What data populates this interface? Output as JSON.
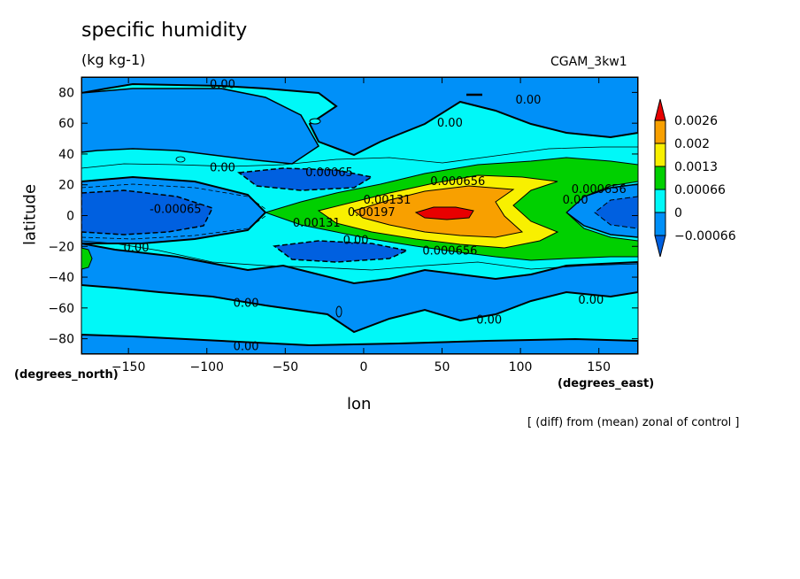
{
  "chart_data": {
    "type": "heatmap",
    "title": "specific humidity",
    "units": "(kg kg-1)",
    "run_label": "CGAM_3kw1",
    "xlabel": "lon",
    "ylabel": "latitude",
    "x_units_label": "(degrees_east)",
    "y_units_label": "(degrees_north)",
    "footnote": "[ (diff) from (mean) zonal of control ]",
    "xlim": [
      -180,
      175
    ],
    "ylim": [
      -90,
      90
    ],
    "x_ticks": [
      -150,
      -100,
      -50,
      0,
      50,
      100,
      150
    ],
    "y_ticks": [
      -80,
      -60,
      -40,
      -20,
      0,
      20,
      40,
      60,
      80
    ],
    "legend": {
      "levels": [
        "0.0026",
        "0.002",
        "0.0013",
        "0.00066",
        "0",
        "-0.00066"
      ],
      "colors": [
        "#e80000",
        "#f8a000",
        "#f8f000",
        "#00d000",
        "#00f8f8",
        "#0090f8",
        "#0060e0"
      ]
    },
    "contour_labels": [
      {
        "text": "0.00",
        "lon": -90,
        "lat": 85
      },
      {
        "text": "0.00",
        "lon": 105,
        "lat": 75
      },
      {
        "text": "0.00",
        "lon": 55,
        "lat": 60
      },
      {
        "text": "0.00",
        "lon": -90,
        "lat": 31
      },
      {
        "text": "0.00065",
        "lon": -22,
        "lat": 28
      },
      {
        "text": "0.000656",
        "lon": 60,
        "lat": 22
      },
      {
        "text": "0.000656",
        "lon": 150,
        "lat": 17
      },
      {
        "text": "0.00",
        "lon": 135,
        "lat": 10
      },
      {
        "text": "0.00131",
        "lon": 15,
        "lat": 10
      },
      {
        "text": "0.00197",
        "lon": 5,
        "lat": 2
      },
      {
        "text": "-0.00065",
        "lon": -120,
        "lat": 4
      },
      {
        "text": "0.00131",
        "lon": -30,
        "lat": -5
      },
      {
        "text": "0.00",
        "lon": -5,
        "lat": -16
      },
      {
        "text": "0.000656",
        "lon": 55,
        "lat": -23
      },
      {
        "text": "0.00",
        "lon": -145,
        "lat": -21
      },
      {
        "text": "0.00",
        "lon": -75,
        "lat": -57
      },
      {
        "text": "0.00",
        "lon": 80,
        "lat": -68
      },
      {
        "text": "0.00",
        "lon": 145,
        "lat": -55
      },
      {
        "text": "0.00",
        "lon": -75,
        "lat": -85
      }
    ]
  }
}
